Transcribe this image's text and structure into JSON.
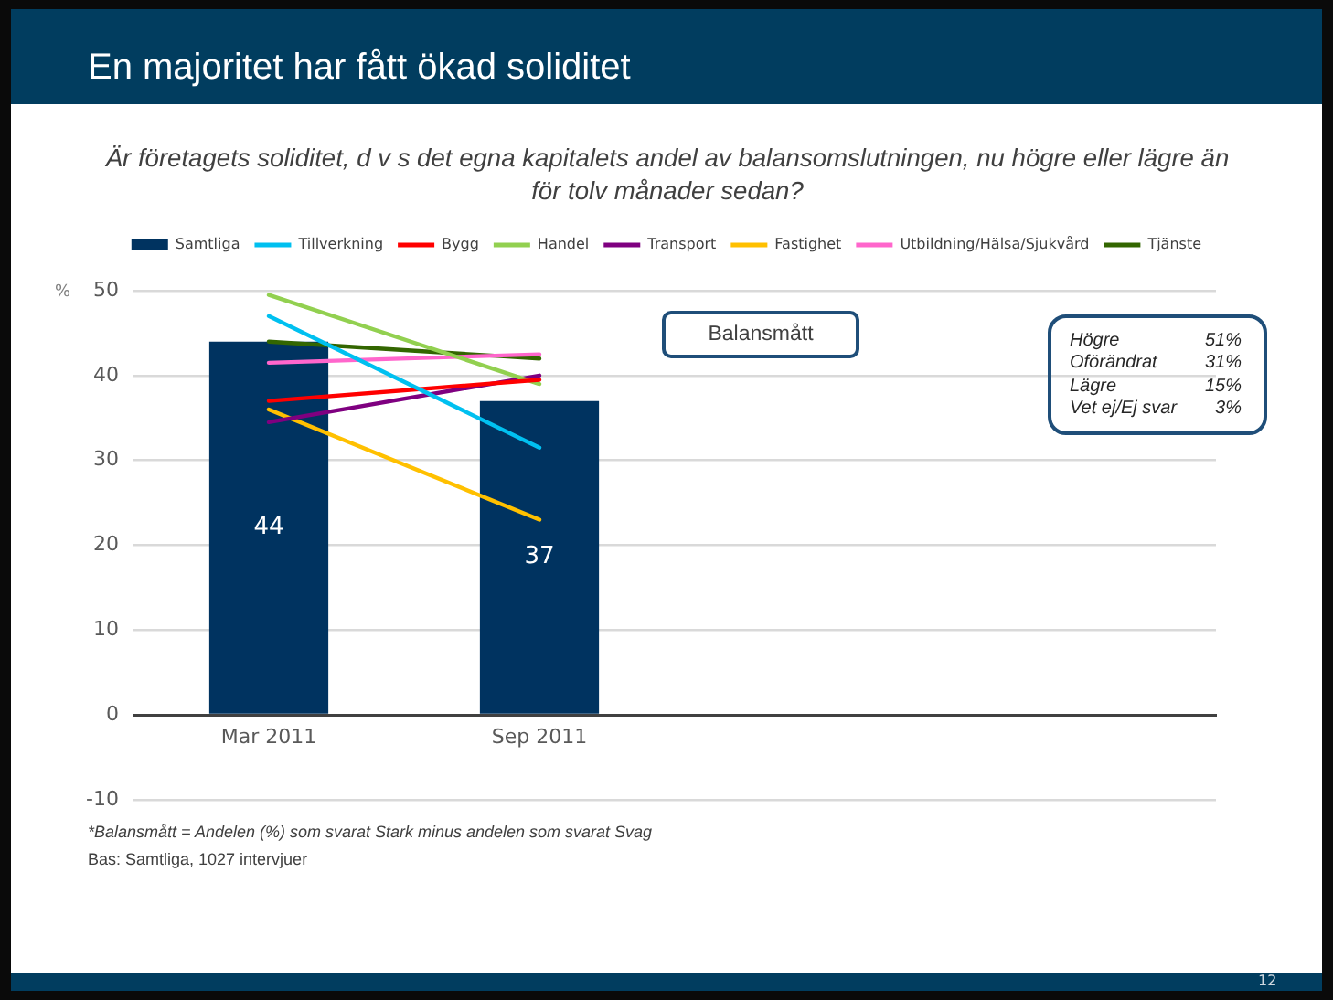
{
  "chart_data": {
    "type": "bar",
    "title": "En majoritet har fått ökad soliditet",
    "subtitle": "Är företagets soliditet, d v s det egna kapitalets andel av balansomslutningen, nu högre eller lägre än för tolv månader sedan?",
    "ylabel": "%",
    "categories": [
      "Mar 2011",
      "Sep 2011",
      null,
      null
    ],
    "series": [
      {
        "name": "Samtliga",
        "color": "#003360",
        "values": [
          44,
          37,
          null,
          null
        ],
        "value_labels": [
          "44",
          "37",
          null,
          null
        ]
      },
      {
        "name": "Tillverkning",
        "type": "line",
        "color": "#00c0f0",
        "values": [
          47,
          31.5,
          null,
          null
        ]
      },
      {
        "name": "Bygg",
        "type": "line",
        "color": "#ff0000",
        "values": [
          37,
          39.5,
          null,
          null
        ]
      },
      {
        "name": "Handel",
        "type": "line",
        "color": "#92d050",
        "values": [
          49.5,
          39,
          null,
          null
        ]
      },
      {
        "name": "Transport",
        "type": "line",
        "color": "#7f0080",
        "values": [
          34.5,
          40,
          null,
          null
        ]
      },
      {
        "name": "Fastighet",
        "type": "line",
        "color": "#ffc000",
        "values": [
          36,
          23,
          null,
          null
        ]
      },
      {
        "name": "Utbildning/Hälsa/Sjukvård",
        "type": "line",
        "color": "#ff66cc",
        "values": [
          41.5,
          42.5,
          null,
          null
        ]
      },
      {
        "name": "Tjänste",
        "type": "line",
        "color": "#336600",
        "values": [
          44,
          42,
          null,
          null
        ]
      }
    ],
    "ylim": [
      -10,
      50
    ],
    "yticks": [
      -10,
      0,
      10,
      20,
      30,
      40,
      50
    ],
    "grid": "y",
    "legend": "top",
    "marker": "none",
    "line_style": "solid",
    "annotations": [
      "Balansmått",
      "Högre 51%",
      "Oförändrat 31%",
      "Lägre 15%",
      "Vet ej/Ej svar 3%",
      "*Balansmått = Andelen (%) som svarat Stark minus andelen som svarat Svag",
      "Bas: Samtliga, 1027 intervjuer",
      "12"
    ]
  }
}
